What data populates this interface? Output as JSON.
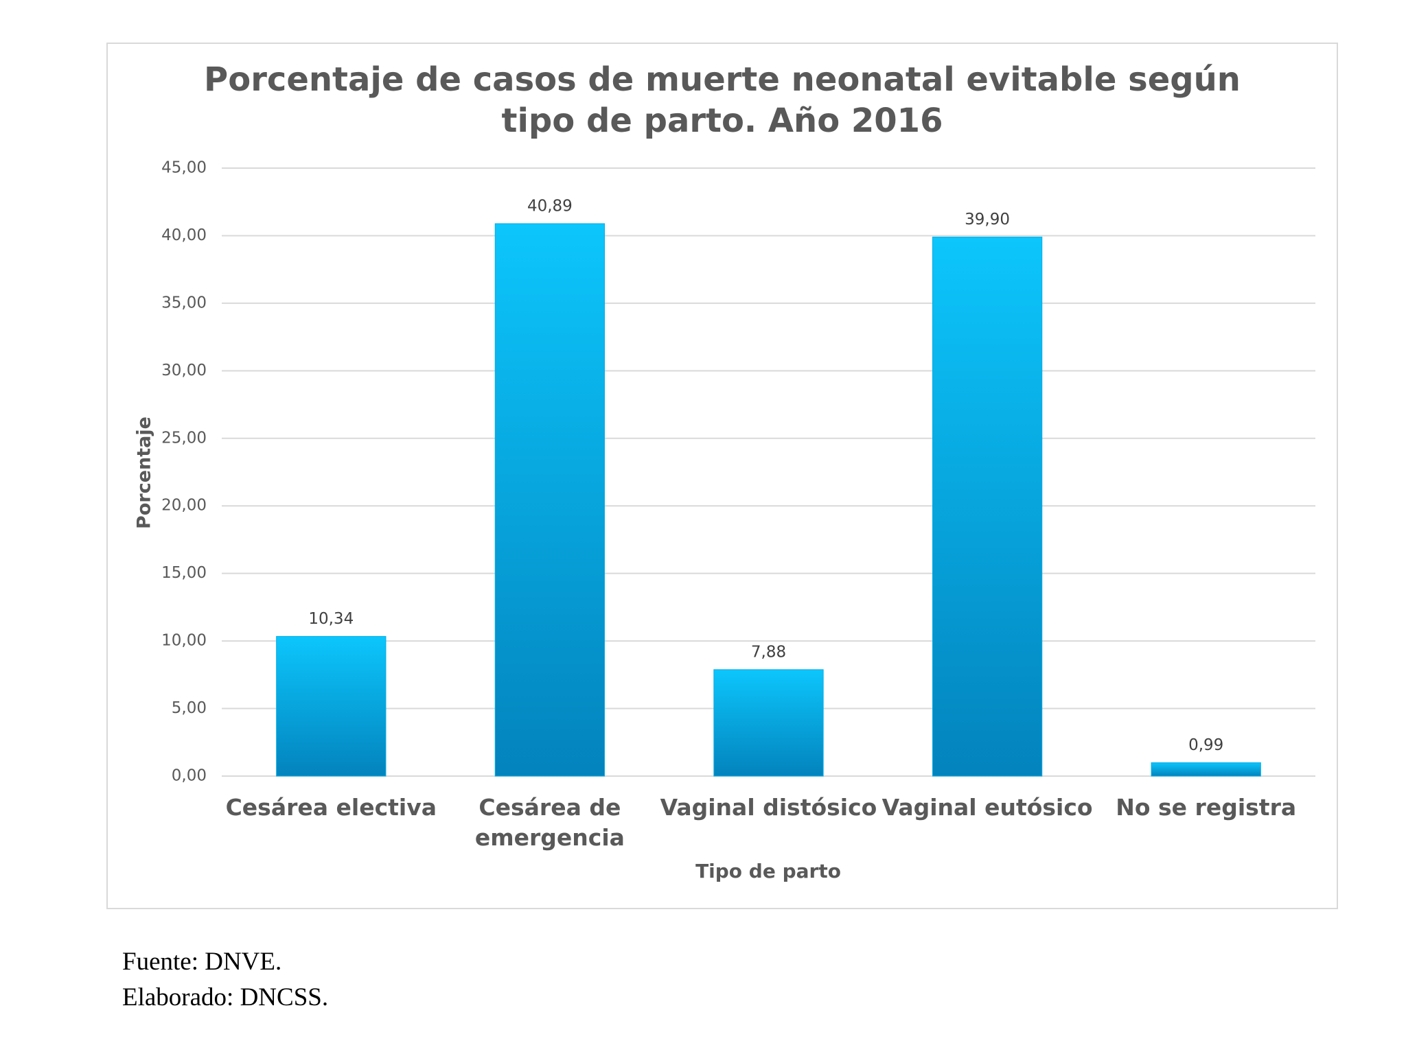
{
  "chart_data": {
    "type": "bar",
    "title": [
      "Porcentaje de casos de muerte neonatal evitable según",
      "tipo de parto. Año 2016"
    ],
    "x_label": "Tipo de parto",
    "y_label": "Porcentaje",
    "categories": [
      "Cesárea electiva",
      "Cesárea de emergencia",
      "Vaginal distósico",
      "Vaginal eutósico",
      "No se registra"
    ],
    "values": [
      10.34,
      40.89,
      7.88,
      39.9,
      0.99
    ],
    "value_labels": [
      "10,34",
      "40,89",
      "7,88",
      "39,90",
      "0,99"
    ],
    "color": "#06aee8",
    "ylim": [
      0,
      45
    ],
    "yticks": [
      {
        "value": 0,
        "label": "0,00"
      },
      {
        "value": 5,
        "label": "5,00"
      },
      {
        "value": 10,
        "label": "10,00"
      },
      {
        "value": 15,
        "label": "15,00"
      },
      {
        "value": 20,
        "label": "20,00"
      },
      {
        "value": 25,
        "label": "25,00"
      },
      {
        "value": 30,
        "label": "30,00"
      },
      {
        "value": 35,
        "label": "35,00"
      },
      {
        "value": 40,
        "label": "40,00"
      },
      {
        "value": 45,
        "label": "45,00"
      }
    ],
    "grid": true
  },
  "footer": [
    "Fuente: DNVE.",
    "Elaborado: DNCSS."
  ]
}
